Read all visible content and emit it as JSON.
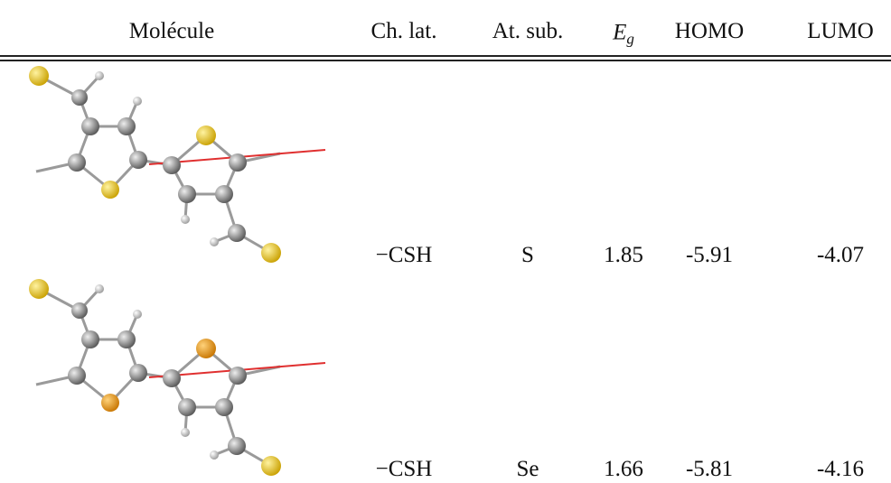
{
  "table": {
    "header": [
      "Molécule",
      "Ch. lat.",
      "At. sub.",
      {
        "main": "E",
        "sub": "g"
      },
      "HOMO",
      "LUMO"
    ],
    "rows": [
      [
        "−CSH",
        "S",
        "1.85",
        "-5.91",
        "-4.07"
      ],
      [
        "−CSH",
        "Se",
        "1.66",
        "-5.81",
        "-4.16"
      ]
    ]
  }
}
